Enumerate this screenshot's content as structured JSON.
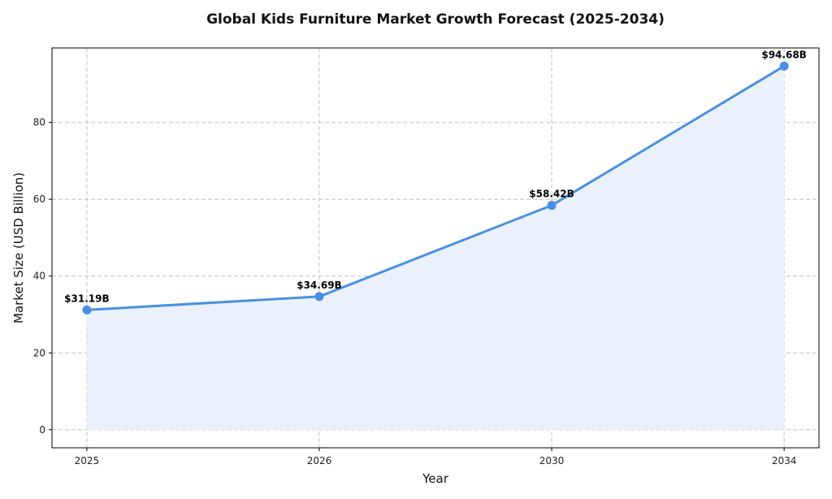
{
  "chart_data": {
    "type": "line",
    "title": "Global Kids Furniture Market Growth Forecast (2025-2034)",
    "xlabel": "Year",
    "ylabel": "Market Size (USD Billion)",
    "categories": [
      "2025",
      "2026",
      "2030",
      "2034"
    ],
    "series": [
      {
        "values": [
          31.19,
          34.69,
          58.42,
          94.68
        ],
        "data_labels": [
          "$31.19B",
          "$34.69B",
          "$58.42B",
          "$94.68B"
        ]
      }
    ],
    "yticks": [
      0,
      20,
      40,
      60,
      80
    ],
    "ylim": [
      -4.7,
      99.4
    ],
    "grid": true,
    "area_fill": true,
    "colors": {
      "line": "#4a90e2",
      "fill": "#eaf1fb",
      "grid": "#c0c0c8"
    }
  }
}
